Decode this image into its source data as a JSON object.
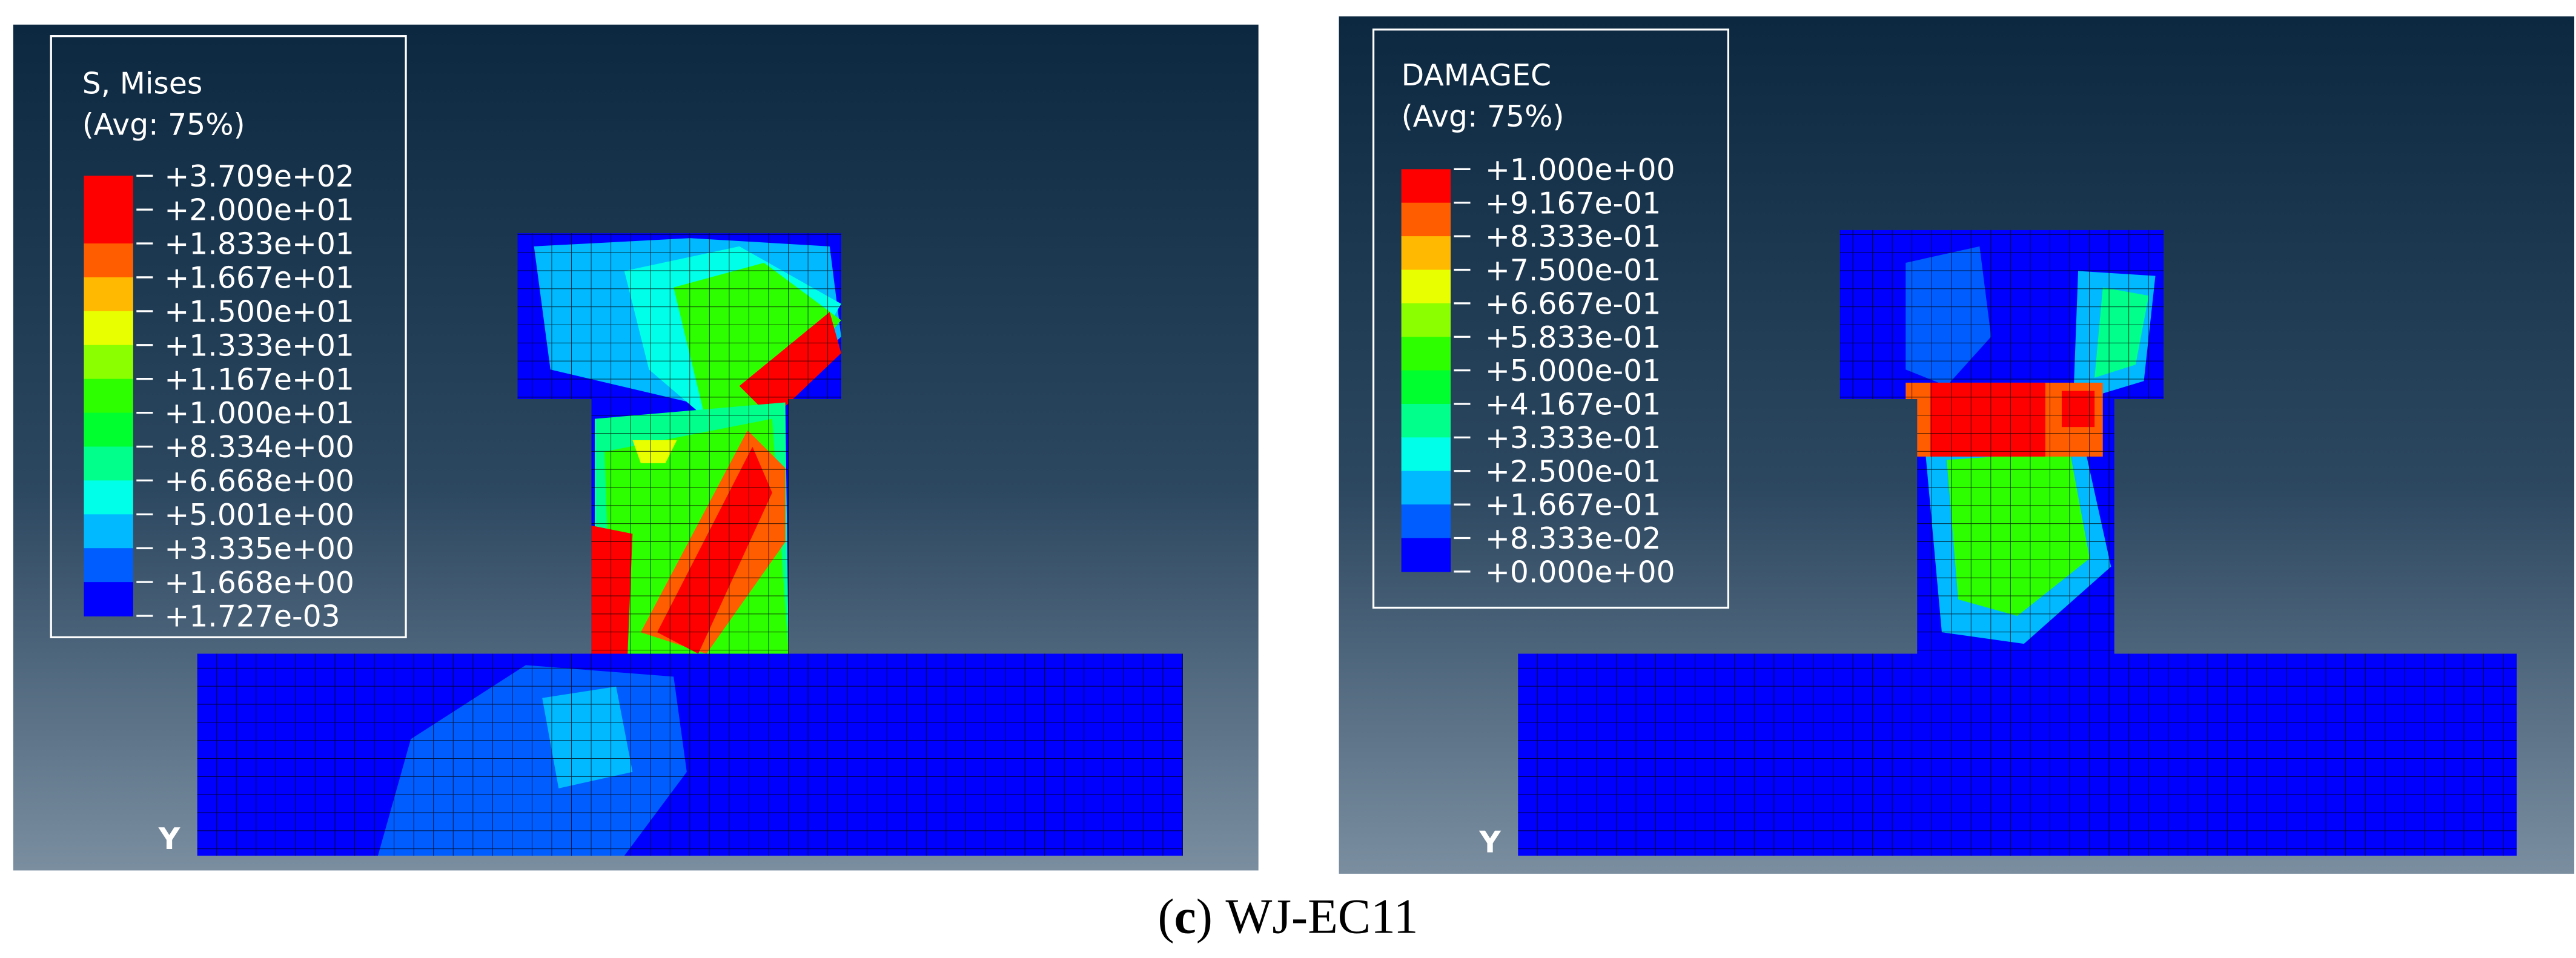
{
  "panels": [
    {
      "legend": {
        "title": "S, Mises",
        "subtitle": "(Avg: 75%)",
        "labels": [
          "+3.709e+02",
          "+2.000e+01",
          "+1.833e+01",
          "+1.667e+01",
          "+1.500e+01",
          "+1.333e+01",
          "+1.167e+01",
          "+1.000e+01",
          "+8.334e+00",
          "+6.668e+00",
          "+5.001e+00",
          "+3.335e+00",
          "+1.668e+00",
          "+1.727e-03"
        ],
        "colors": [
          "#ff0000",
          "#ff0000",
          "#ff5d00",
          "#ffb900",
          "#e8ff00",
          "#8bff00",
          "#2eff00",
          "#00ff2e",
          "#00ff8b",
          "#00ffe8",
          "#00b9ff",
          "#005dff",
          "#0000ff"
        ]
      },
      "axis_label": "Y"
    },
    {
      "legend": {
        "title": "DAMAGEC",
        "subtitle": "(Avg: 75%)",
        "labels": [
          "+1.000e+00",
          "+9.167e-01",
          "+8.333e-01",
          "+7.500e-01",
          "+6.667e-01",
          "+5.833e-01",
          "+5.000e-01",
          "+4.167e-01",
          "+3.333e-01",
          "+2.500e-01",
          "+1.667e-01",
          "+8.333e-02",
          "+0.000e+00"
        ],
        "colors": [
          "#ff0000",
          "#ff5d00",
          "#ffb900",
          "#e8ff00",
          "#8bff00",
          "#2eff00",
          "#00ff2e",
          "#00ff8b",
          "#00ffe8",
          "#00b9ff",
          "#005dff",
          "#0000ff"
        ]
      },
      "axis_label": "Y"
    }
  ],
  "caption": {
    "open": "(",
    "label": "c",
    "close": ")",
    "text": "WJ-EC11"
  }
}
